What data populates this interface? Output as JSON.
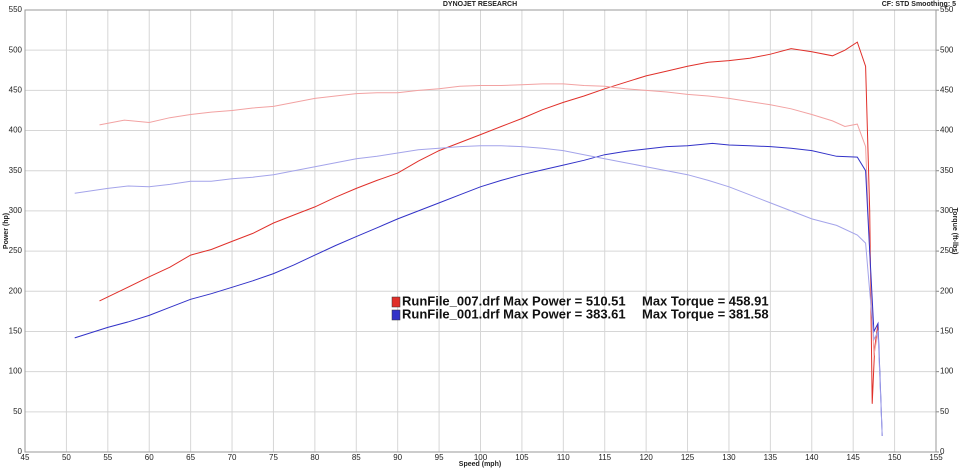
{
  "chart_data": {
    "type": "line",
    "title": "DYNOJET RESEARCH",
    "subtitle": "CF: STD  Smoothing: 5",
    "xlabel": "Speed (mph)",
    "ylabel": "Power (hp)",
    "y2label": "Torque (ft-lbs)",
    "xlim": [
      45,
      155
    ],
    "xticks": [
      45,
      50,
      55,
      60,
      65,
      70,
      75,
      80,
      85,
      90,
      95,
      100,
      105,
      110,
      115,
      120,
      125,
      130,
      135,
      140,
      145,
      150,
      155
    ],
    "ylim": [
      0,
      550
    ],
    "yticks": [
      0,
      50,
      100,
      150,
      200,
      250,
      300,
      350,
      400,
      450,
      500,
      550
    ],
    "y2lim": [
      0,
      550
    ],
    "y2ticks": [
      0,
      50,
      100,
      150,
      200,
      250,
      300,
      350,
      400,
      450,
      500,
      550
    ],
    "grid": true,
    "series": [
      {
        "name": "RunFile_007.drf Max Power = 510.51",
        "color": "#e0302a",
        "x": [
          54,
          57,
          60,
          62.5,
          65,
          67.5,
          70,
          72.5,
          75,
          77.5,
          80,
          82.5,
          85,
          87.5,
          90,
          92.5,
          95,
          97.5,
          100,
          102.5,
          105,
          107.5,
          110,
          112.5,
          115,
          117.5,
          120,
          122.5,
          125,
          127.5,
          130,
          132.5,
          135,
          137.5,
          140,
          142.5,
          144,
          145.5,
          146.5,
          147,
          147.3,
          147.6,
          148
        ],
        "values": [
          188,
          203,
          218,
          230,
          245,
          252,
          262,
          272,
          285,
          295,
          305,
          317,
          328,
          338,
          347,
          362,
          375,
          385,
          395,
          405,
          415,
          426,
          435,
          443,
          452,
          460,
          468,
          474,
          480,
          485,
          487,
          490,
          495,
          502,
          498,
          493,
          500,
          510,
          480,
          300,
          60,
          130,
          160
        ]
      },
      {
        "name": "Max Torque = 458.91",
        "color": "#f2a2a2",
        "axis": "y2",
        "x": [
          54,
          57,
          60,
          62.5,
          65,
          67.5,
          70,
          72.5,
          75,
          77.5,
          80,
          82.5,
          85,
          87.5,
          90,
          92.5,
          95,
          97.5,
          100,
          102.5,
          105,
          107.5,
          110,
          112.5,
          115,
          117.5,
          120,
          122.5,
          125,
          127.5,
          130,
          132.5,
          135,
          137.5,
          140,
          142.5,
          144,
          145.5,
          146.5,
          147,
          147.5,
          148
        ],
        "values": [
          407,
          413,
          410,
          416,
          420,
          423,
          425,
          428,
          430,
          435,
          440,
          443,
          446,
          447,
          447,
          450,
          452,
          455,
          456,
          456,
          457,
          458,
          458,
          456,
          455,
          452,
          450,
          448,
          445,
          443,
          440,
          436,
          432,
          427,
          420,
          412,
          405,
          408,
          380,
          250,
          120,
          150
        ]
      },
      {
        "name": "RunFile_001.drf Max Power = 383.61",
        "color": "#3232c8",
        "x": [
          51,
          55,
          57.5,
          60,
          62.5,
          65,
          67.5,
          70,
          72.5,
          75,
          77.5,
          80,
          82.5,
          85,
          87.5,
          90,
          92.5,
          95,
          97.5,
          100,
          102.5,
          105,
          107.5,
          110,
          112.5,
          115,
          117.5,
          120,
          122.5,
          125,
          128,
          130,
          132.5,
          135,
          137.5,
          140,
          143,
          145.5,
          146.5,
          147,
          147.5,
          148,
          148.5
        ],
        "values": [
          142,
          155,
          162,
          170,
          180,
          190,
          197,
          205,
          213,
          222,
          233,
          245,
          257,
          268,
          279,
          290,
          300,
          310,
          320,
          330,
          338,
          345,
          351,
          357,
          363,
          370,
          374,
          377,
          380,
          381,
          384,
          382,
          381,
          380,
          378,
          375,
          368,
          367,
          350,
          250,
          150,
          160,
          20
        ]
      },
      {
        "name": "Max Torque = 381.58",
        "color": "#a4a4ea",
        "axis": "y2",
        "x": [
          51,
          55,
          57.5,
          60,
          62.5,
          65,
          67.5,
          70,
          72.5,
          75,
          77.5,
          80,
          82.5,
          85,
          87.5,
          90,
          92.5,
          95,
          97.5,
          100,
          102.5,
          105,
          107.5,
          110,
          112.5,
          115,
          117.5,
          120,
          122.5,
          125,
          127.5,
          130,
          132.5,
          135,
          137.5,
          140,
          143,
          145.5,
          146.5,
          147,
          147.5,
          148,
          148.5
        ],
        "values": [
          322,
          328,
          331,
          330,
          333,
          337,
          337,
          340,
          342,
          345,
          350,
          355,
          360,
          365,
          368,
          372,
          376,
          378,
          380,
          381,
          381,
          380,
          378,
          375,
          370,
          365,
          360,
          355,
          350,
          345,
          338,
          330,
          320,
          310,
          300,
          290,
          282,
          270,
          260,
          200,
          140,
          150,
          20
        ]
      }
    ]
  }
}
